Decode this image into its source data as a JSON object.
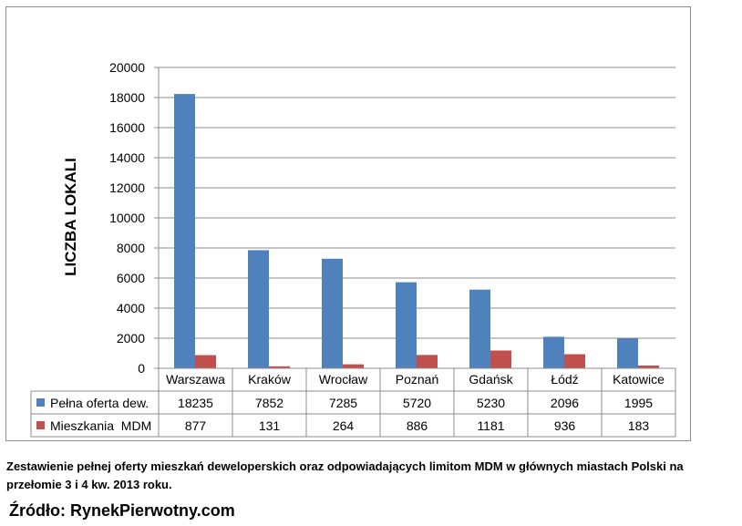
{
  "chart_data": {
    "type": "bar",
    "ylabel": "LICZBA LOKALI",
    "xlabel": "",
    "ylim": [
      0,
      20000
    ],
    "yticks": [
      0,
      2000,
      4000,
      6000,
      8000,
      10000,
      12000,
      14000,
      16000,
      18000,
      20000
    ],
    "grid": true,
    "legend": "data-table-left",
    "categories": [
      "Warszawa",
      "Kraków",
      "Wrocław",
      "Poznań",
      "Gdańsk",
      "Łódź",
      "Katowice"
    ],
    "series": [
      {
        "name": "Pełna oferta dew.",
        "color": "#4f81bd",
        "values": [
          18235,
          7852,
          7285,
          5720,
          5230,
          2096,
          1995
        ]
      },
      {
        "name": "Mieszkania  MDM",
        "color": "#c0504d",
        "values": [
          877,
          131,
          264,
          886,
          1181,
          936,
          183
        ]
      }
    ]
  },
  "caption": "Zestawienie pełnej oferty mieszkań deweloperskich oraz odpowiadających limitom MDM w głównych miastach Polski na przełomie 3 i 4 kw. 2013 roku.",
  "source": "Źródło: RynekPierwotny.com"
}
